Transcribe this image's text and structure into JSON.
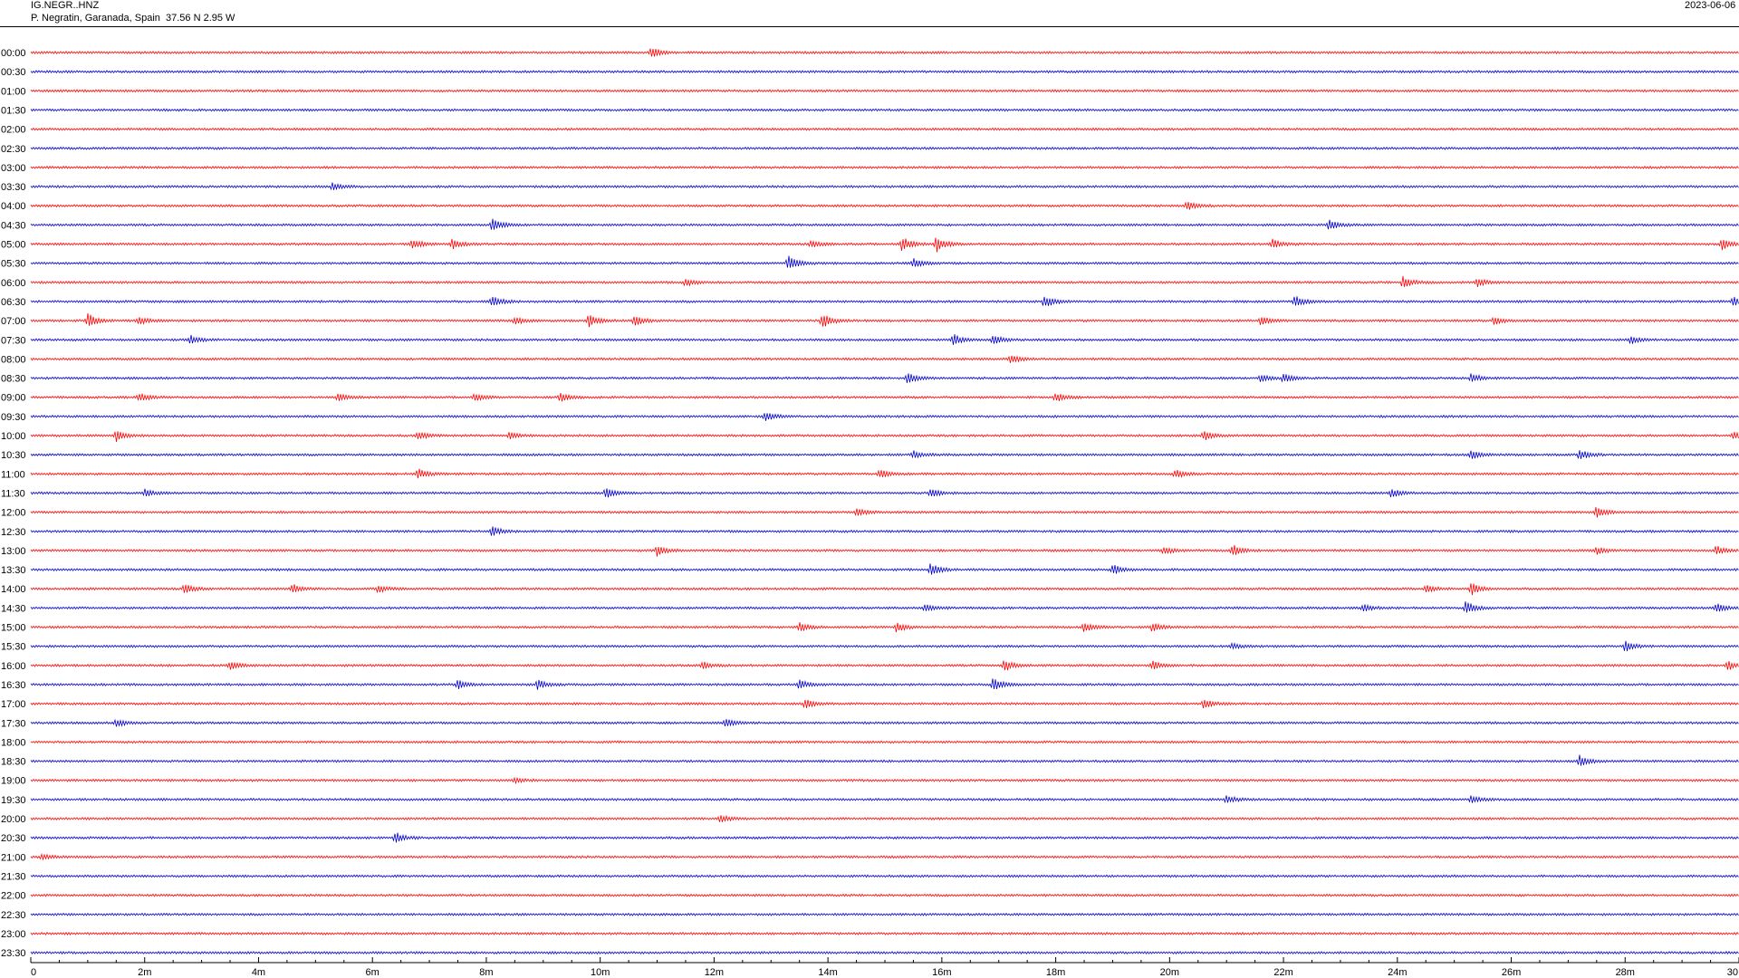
{
  "header": {
    "station": "IG.NEGR..HNZ",
    "location": "P. Negratin, Garanada, Spain  37.56 N 2.95 W",
    "date": "2023-06-06"
  },
  "colors": {
    "even_row": "#ff0000",
    "odd_row": "#0000cc",
    "axis": "#000000"
  },
  "chart_data": {
    "type": "line",
    "title": "",
    "xlabel": "",
    "ylabel": "",
    "x_range_minutes": [
      0,
      30
    ],
    "x_ticks": [
      "0",
      "2m",
      "4m",
      "6m",
      "8m",
      "10m",
      "12m",
      "14m",
      "16m",
      "18m",
      "20m",
      "22m",
      "24m",
      "26m",
      "28m",
      "30"
    ],
    "rows": [
      "00:00",
      "00:30",
      "01:00",
      "01:30",
      "02:00",
      "02:30",
      "03:00",
      "03:30",
      "04:00",
      "04:30",
      "05:00",
      "05:30",
      "06:00",
      "06:30",
      "07:00",
      "07:30",
      "08:00",
      "08:30",
      "09:00",
      "09:30",
      "10:00",
      "10:30",
      "11:00",
      "11:30",
      "12:00",
      "12:30",
      "13:00",
      "13:30",
      "14:00",
      "14:30",
      "15:00",
      "15:30",
      "16:00",
      "16:30",
      "17:00",
      "17:30",
      "18:00",
      "18:30",
      "19:00",
      "19:30",
      "20:00",
      "20:30",
      "21:00",
      "21:30",
      "22:00",
      "22:30",
      "23:00",
      "23:30"
    ],
    "events": [
      {
        "row": "00:00",
        "minute": 10.9,
        "amp": 6
      },
      {
        "row": "03:30",
        "minute": 5.3,
        "amp": 4
      },
      {
        "row": "04:00",
        "minute": 20.3,
        "amp": 5
      },
      {
        "row": "04:30",
        "minute": 8.1,
        "amp": 7
      },
      {
        "row": "04:30",
        "minute": 22.8,
        "amp": 6
      },
      {
        "row": "05:00",
        "minute": 6.7,
        "amp": 5
      },
      {
        "row": "05:00",
        "minute": 7.4,
        "amp": 6
      },
      {
        "row": "05:00",
        "minute": 13.7,
        "amp": 4
      },
      {
        "row": "05:00",
        "minute": 15.3,
        "amp": 8
      },
      {
        "row": "05:00",
        "minute": 15.9,
        "amp": 9
      },
      {
        "row": "05:00",
        "minute": 21.8,
        "amp": 6
      },
      {
        "row": "05:00",
        "minute": 29.7,
        "amp": 6
      },
      {
        "row": "05:30",
        "minute": 13.3,
        "amp": 10
      },
      {
        "row": "05:30",
        "minute": 15.5,
        "amp": 5
      },
      {
        "row": "06:00",
        "minute": 11.5,
        "amp": 4
      },
      {
        "row": "06:00",
        "minute": 24.1,
        "amp": 7
      },
      {
        "row": "06:00",
        "minute": 25.4,
        "amp": 5
      },
      {
        "row": "06:30",
        "minute": 8.1,
        "amp": 7
      },
      {
        "row": "06:30",
        "minute": 17.8,
        "amp": 7
      },
      {
        "row": "06:30",
        "minute": 22.2,
        "amp": 6
      },
      {
        "row": "06:30",
        "minute": 29.9,
        "amp": 5
      },
      {
        "row": "07:00",
        "minute": 1.0,
        "amp": 8
      },
      {
        "row": "07:00",
        "minute": 1.9,
        "amp": 4
      },
      {
        "row": "07:00",
        "minute": 8.5,
        "amp": 4
      },
      {
        "row": "07:00",
        "minute": 9.8,
        "amp": 7
      },
      {
        "row": "07:00",
        "minute": 10.6,
        "amp": 6
      },
      {
        "row": "07:00",
        "minute": 13.9,
        "amp": 9
      },
      {
        "row": "07:00",
        "minute": 21.6,
        "amp": 5
      },
      {
        "row": "07:00",
        "minute": 25.7,
        "amp": 4
      },
      {
        "row": "07:30",
        "minute": 2.8,
        "amp": 5
      },
      {
        "row": "07:30",
        "minute": 16.2,
        "amp": 6
      },
      {
        "row": "07:30",
        "minute": 16.9,
        "amp": 5
      },
      {
        "row": "07:30",
        "minute": 28.1,
        "amp": 4
      },
      {
        "row": "08:00",
        "minute": 17.2,
        "amp": 5
      },
      {
        "row": "08:30",
        "minute": 15.4,
        "amp": 6
      },
      {
        "row": "08:30",
        "minute": 21.6,
        "amp": 4
      },
      {
        "row": "08:30",
        "minute": 22.0,
        "amp": 5
      },
      {
        "row": "08:30",
        "minute": 25.3,
        "amp": 5
      },
      {
        "row": "09:00",
        "minute": 1.9,
        "amp": 5
      },
      {
        "row": "09:00",
        "minute": 5.4,
        "amp": 4
      },
      {
        "row": "09:00",
        "minute": 7.8,
        "amp": 4
      },
      {
        "row": "09:00",
        "minute": 9.3,
        "amp": 5
      },
      {
        "row": "09:00",
        "minute": 18.0,
        "amp": 5
      },
      {
        "row": "09:30",
        "minute": 12.9,
        "amp": 5
      },
      {
        "row": "10:00",
        "minute": 1.5,
        "amp": 6
      },
      {
        "row": "10:00",
        "minute": 6.8,
        "amp": 5
      },
      {
        "row": "10:00",
        "minute": 8.4,
        "amp": 4
      },
      {
        "row": "10:00",
        "minute": 20.6,
        "amp": 5
      },
      {
        "row": "10:00",
        "minute": 29.9,
        "amp": 5
      },
      {
        "row": "10:30",
        "minute": 15.5,
        "amp": 4
      },
      {
        "row": "10:30",
        "minute": 25.3,
        "amp": 5
      },
      {
        "row": "10:30",
        "minute": 27.2,
        "amp": 6
      },
      {
        "row": "11:00",
        "minute": 6.8,
        "amp": 6
      },
      {
        "row": "11:00",
        "minute": 14.9,
        "amp": 5
      },
      {
        "row": "11:00",
        "minute": 20.1,
        "amp": 5
      },
      {
        "row": "11:30",
        "minute": 2.0,
        "amp": 4
      },
      {
        "row": "11:30",
        "minute": 10.1,
        "amp": 6
      },
      {
        "row": "11:30",
        "minute": 15.8,
        "amp": 5
      },
      {
        "row": "11:30",
        "minute": 23.9,
        "amp": 5
      },
      {
        "row": "12:00",
        "minute": 14.5,
        "amp": 5
      },
      {
        "row": "12:00",
        "minute": 27.5,
        "amp": 6
      },
      {
        "row": "12:30",
        "minute": 8.1,
        "amp": 5
      },
      {
        "row": "13:00",
        "minute": 11.0,
        "amp": 6
      },
      {
        "row": "13:00",
        "minute": 19.9,
        "amp": 4
      },
      {
        "row": "13:00",
        "minute": 21.1,
        "amp": 7
      },
      {
        "row": "13:00",
        "minute": 27.5,
        "amp": 4
      },
      {
        "row": "13:00",
        "minute": 29.6,
        "amp": 5
      },
      {
        "row": "13:30",
        "minute": 15.8,
        "amp": 7
      },
      {
        "row": "13:30",
        "minute": 19.0,
        "amp": 6
      },
      {
        "row": "14:00",
        "minute": 2.7,
        "amp": 6
      },
      {
        "row": "14:00",
        "minute": 4.6,
        "amp": 5
      },
      {
        "row": "14:00",
        "minute": 6.1,
        "amp": 4
      },
      {
        "row": "14:00",
        "minute": 24.5,
        "amp": 4
      },
      {
        "row": "14:00",
        "minute": 25.3,
        "amp": 7
      },
      {
        "row": "14:30",
        "minute": 15.7,
        "amp": 4
      },
      {
        "row": "14:30",
        "minute": 23.4,
        "amp": 4
      },
      {
        "row": "14:30",
        "minute": 25.2,
        "amp": 8
      },
      {
        "row": "14:30",
        "minute": 29.6,
        "amp": 5
      },
      {
        "row": "15:00",
        "minute": 13.5,
        "amp": 5
      },
      {
        "row": "15:00",
        "minute": 15.2,
        "amp": 5
      },
      {
        "row": "15:00",
        "minute": 18.5,
        "amp": 5
      },
      {
        "row": "15:00",
        "minute": 19.7,
        "amp": 5
      },
      {
        "row": "15:30",
        "minute": 21.1,
        "amp": 3
      },
      {
        "row": "15:30",
        "minute": 28.0,
        "amp": 6
      },
      {
        "row": "16:00",
        "minute": 3.5,
        "amp": 5
      },
      {
        "row": "16:00",
        "minute": 11.8,
        "amp": 4
      },
      {
        "row": "16:00",
        "minute": 17.1,
        "amp": 7
      },
      {
        "row": "16:00",
        "minute": 19.7,
        "amp": 5
      },
      {
        "row": "16:00",
        "minute": 29.8,
        "amp": 5
      },
      {
        "row": "16:30",
        "minute": 7.5,
        "amp": 5
      },
      {
        "row": "16:30",
        "minute": 8.9,
        "amp": 5
      },
      {
        "row": "16:30",
        "minute": 13.5,
        "amp": 5
      },
      {
        "row": "16:30",
        "minute": 16.9,
        "amp": 7
      },
      {
        "row": "17:00",
        "minute": 13.6,
        "amp": 5
      },
      {
        "row": "17:00",
        "minute": 20.6,
        "amp": 5
      },
      {
        "row": "17:30",
        "minute": 1.5,
        "amp": 4
      },
      {
        "row": "17:30",
        "minute": 12.2,
        "amp": 5
      },
      {
        "row": "18:30",
        "minute": 27.2,
        "amp": 6
      },
      {
        "row": "19:00",
        "minute": 8.5,
        "amp": 3
      },
      {
        "row": "19:30",
        "minute": 21.0,
        "amp": 4
      },
      {
        "row": "19:30",
        "minute": 25.3,
        "amp": 4
      },
      {
        "row": "20:00",
        "minute": 12.1,
        "amp": 4
      },
      {
        "row": "20:30",
        "minute": 6.4,
        "amp": 6
      },
      {
        "row": "21:00",
        "minute": 0.2,
        "amp": 3
      }
    ]
  }
}
